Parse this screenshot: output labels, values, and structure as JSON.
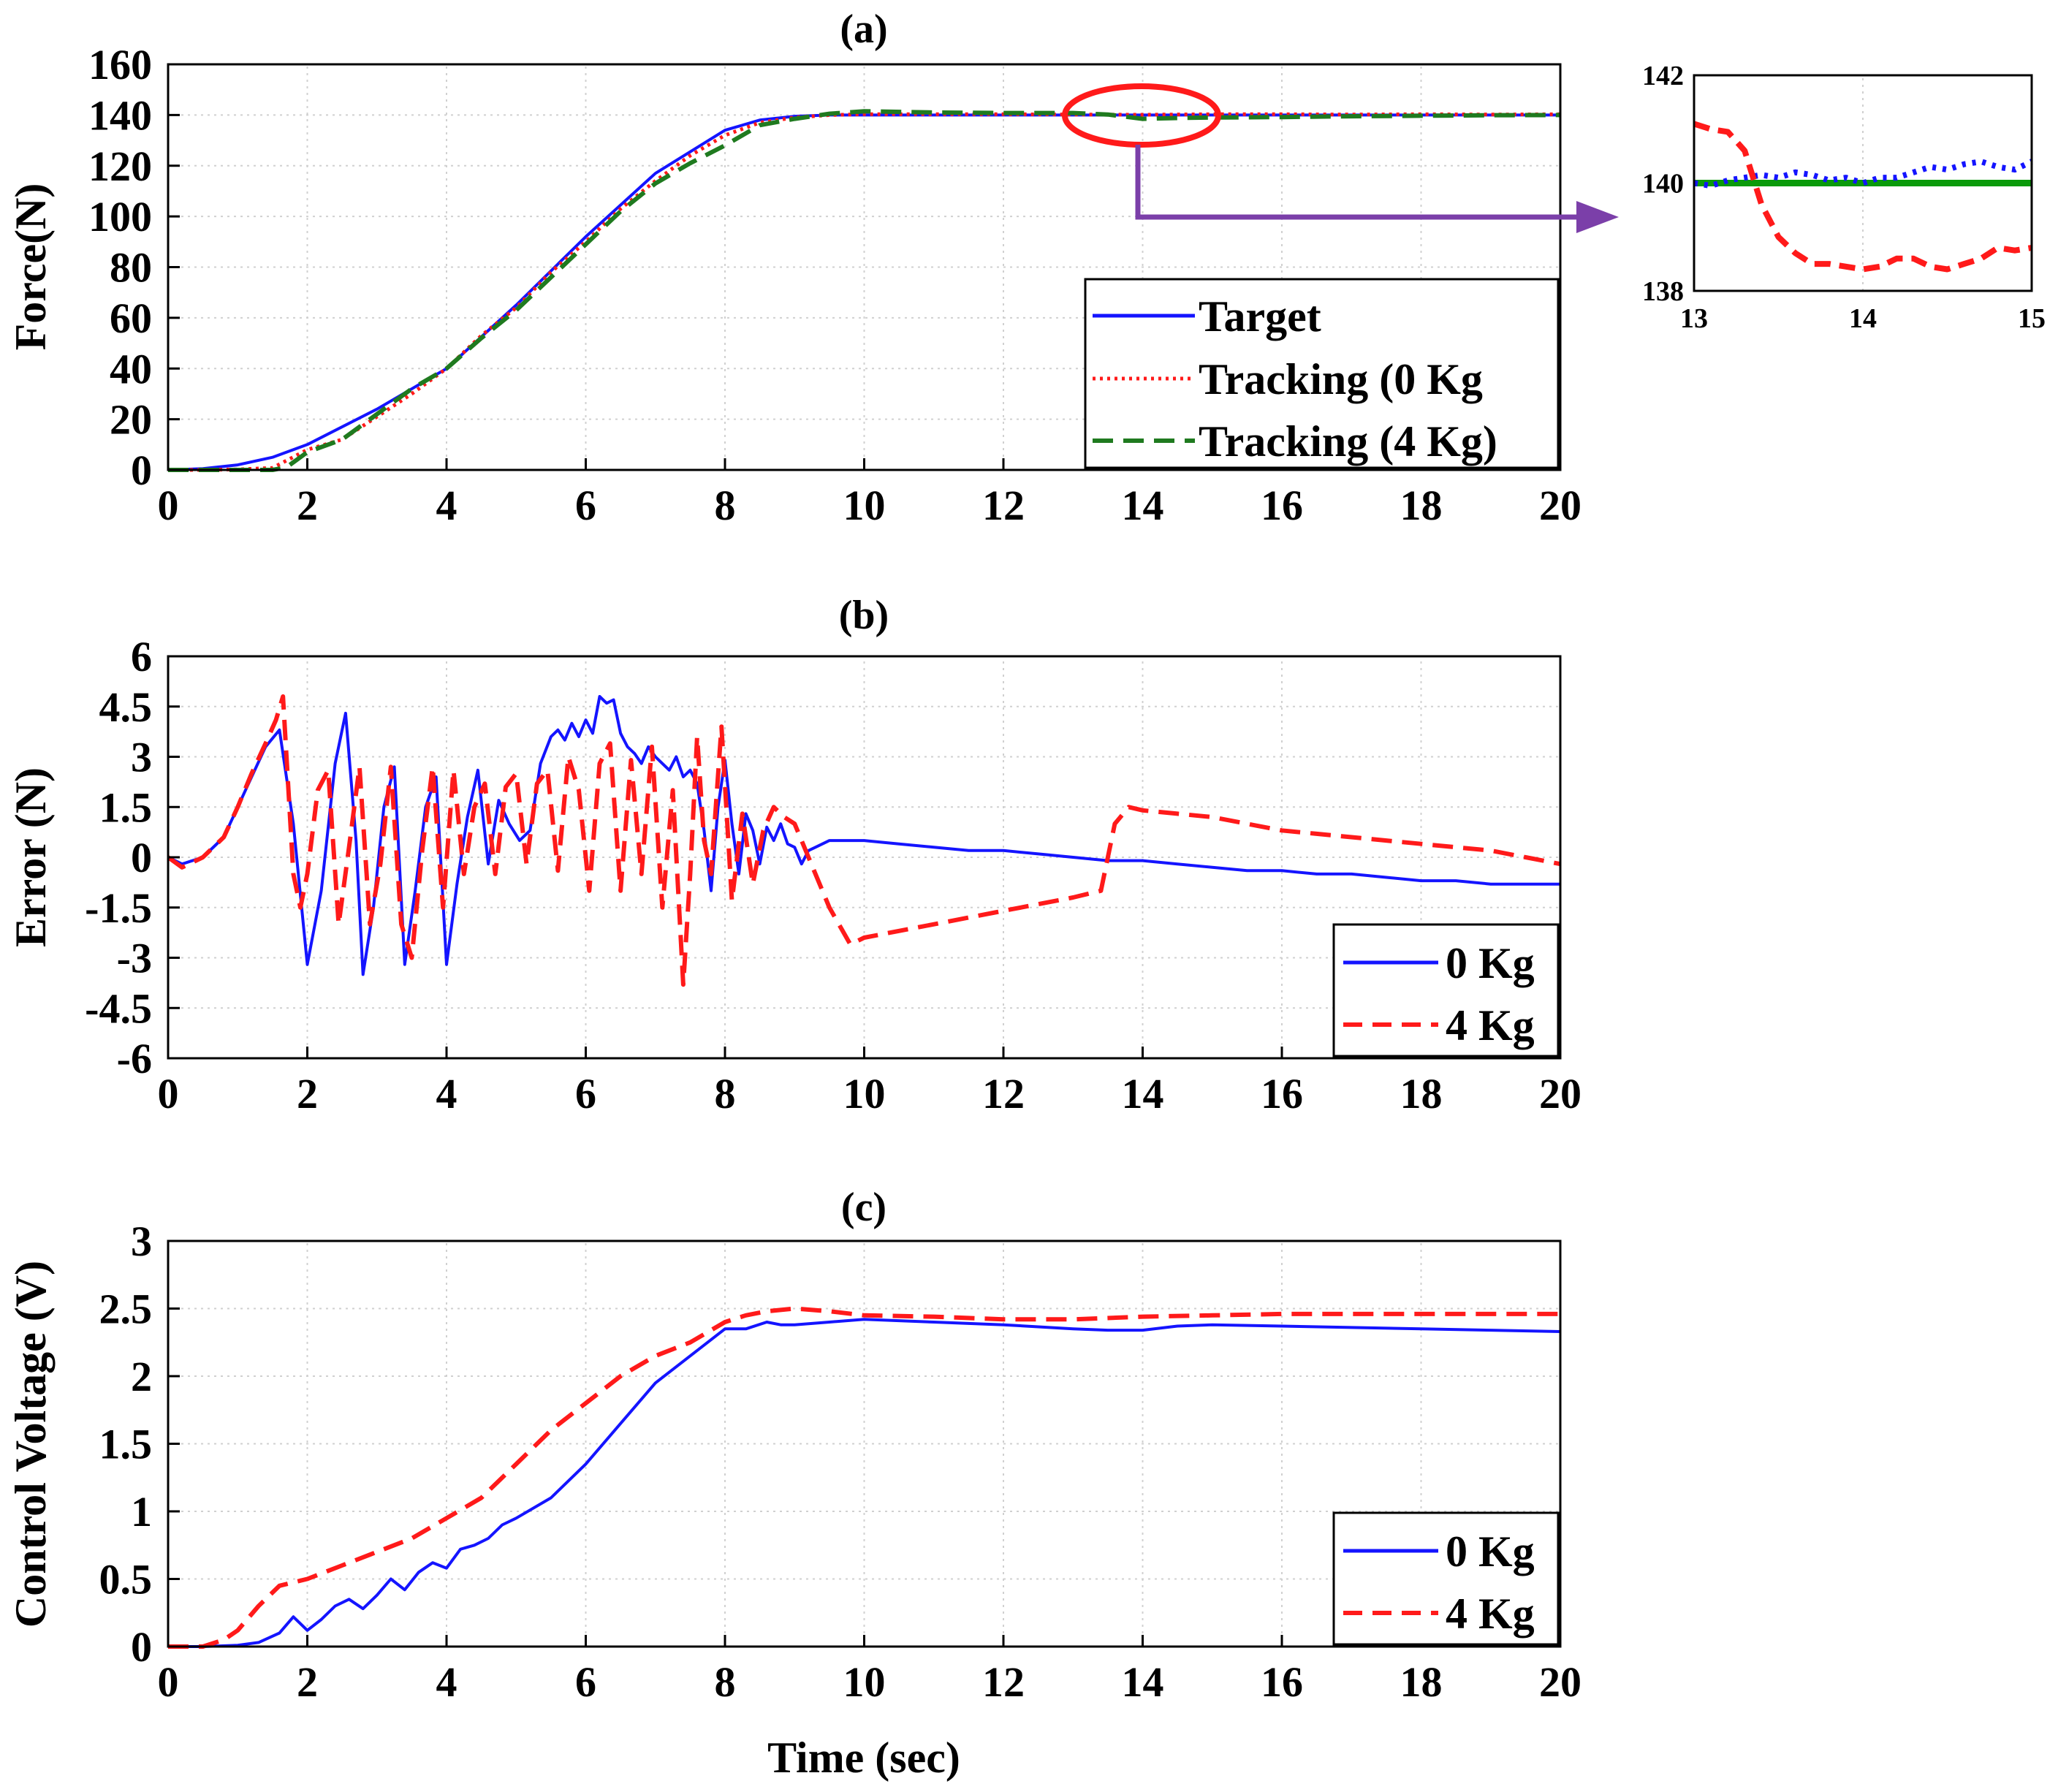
{
  "colors": {
    "target": "#1414ff",
    "track0": "#ff1a1a",
    "track4": "#1f7a1f",
    "kg0": "#1414ff",
    "kg4": "#ff1a1a",
    "inset_target": "#0a9a0a",
    "annot_circle": "#ff1a1a",
    "annot_arrow": "#7b3fa9"
  },
  "chart_data": [
    {
      "id": "a",
      "type": "line",
      "title": "(a)",
      "xlabel": "",
      "ylabel": "Force(N)",
      "xlim": [
        0,
        20
      ],
      "ylim": [
        0,
        160
      ],
      "xticks": [
        "0",
        "2",
        "4",
        "6",
        "8",
        "10",
        "12",
        "14",
        "16",
        "18",
        "20"
      ],
      "yticks": [
        "0",
        "20",
        "40",
        "60",
        "80",
        "100",
        "120",
        "140",
        "160"
      ],
      "grid": true,
      "legend_position": "bottom-right",
      "series": [
        {
          "name": "Target",
          "style": "solid",
          "color_key": "target",
          "x": [
            0,
            0.5,
            1,
            1.5,
            2,
            3,
            4,
            5,
            6,
            7,
            8,
            8.5,
            9,
            9.5,
            10,
            11,
            12,
            13,
            14,
            15,
            16,
            17,
            18,
            19,
            20
          ],
          "y": [
            0,
            0.5,
            2,
            5,
            10,
            24,
            40,
            65,
            92,
            117,
            134,
            138,
            139.5,
            140,
            140,
            140,
            140,
            140,
            140,
            140,
            140,
            140,
            140,
            140,
            140
          ]
        },
        {
          "name": "Tracking (0 Kg",
          "style": "dotted",
          "color_key": "track0",
          "x": [
            0,
            0.5,
            1,
            1.5,
            2,
            2.5,
            3,
            3.5,
            4,
            4.5,
            5,
            5.5,
            6,
            6.5,
            7,
            7.5,
            8,
            8.5,
            9,
            9.5,
            10,
            12,
            13,
            14,
            15,
            16,
            17,
            18,
            19,
            20
          ],
          "y": [
            0,
            0,
            0.2,
            0.8,
            8,
            12,
            21,
            30,
            40,
            53,
            64,
            78,
            90,
            103,
            114,
            124,
            132,
            137,
            139,
            140,
            140.3,
            140.3,
            140.2,
            140.1,
            140.3,
            140.3,
            140.2,
            140.3,
            140.2,
            140.3
          ]
        },
        {
          "name": "Tracking (4 Kg)",
          "style": "dashed",
          "color_key": "track4",
          "x": [
            0,
            0.5,
            1,
            1.5,
            1.7,
            2,
            2.5,
            3,
            3.5,
            4,
            4.5,
            5,
            5.5,
            6,
            6.5,
            7,
            7.5,
            8,
            8.5,
            9,
            9.5,
            10,
            11,
            12,
            13,
            13.5,
            14,
            14.5,
            15,
            16,
            17,
            18,
            19,
            20
          ],
          "y": [
            0,
            0,
            0,
            0,
            1,
            7,
            12,
            22,
            32,
            40,
            52,
            63,
            76,
            89,
            102,
            113,
            121,
            128,
            136,
            138.5,
            140.5,
            141.5,
            141,
            140.8,
            140.8,
            140.2,
            138.5,
            138.8,
            139,
            139.2,
            139.5,
            139.7,
            139.9,
            140
          ]
        }
      ],
      "inset": {
        "xlim": [
          13,
          15
        ],
        "ylim": [
          138,
          142
        ],
        "xticks": [
          "13",
          "14",
          "15"
        ],
        "yticks": [
          "138",
          "140",
          "142"
        ],
        "series": [
          {
            "color_key": "inset_target",
            "style": "solid",
            "x": [
              13,
              15
            ],
            "y": [
              140,
              140
            ]
          },
          {
            "color_key": "kg0",
            "style": "dotted",
            "x": [
              13,
              13.1,
              13.2,
              13.3,
              13.4,
              13.5,
              13.6,
              13.7,
              13.8,
              13.9,
              14,
              14.1,
              14.2,
              14.3,
              14.4,
              14.5,
              14.6,
              14.7,
              14.8,
              14.9,
              15
            ],
            "y": [
              140,
              139.95,
              140.05,
              140.1,
              140.15,
              140.1,
              140.2,
              140.15,
              140.05,
              140.1,
              140,
              140.1,
              140.1,
              140.2,
              140.3,
              140.25,
              140.35,
              140.4,
              140.3,
              140.25,
              140.4
            ]
          },
          {
            "color_key": "kg4",
            "style": "dashed",
            "x": [
              13,
              13.1,
              13.2,
              13.3,
              13.4,
              13.5,
              13.6,
              13.7,
              13.8,
              13.9,
              14,
              14.1,
              14.2,
              14.3,
              14.4,
              14.5,
              14.6,
              14.7,
              14.8,
              14.9,
              15
            ],
            "y": [
              141.1,
              141,
              140.95,
              140.6,
              139.6,
              139,
              138.7,
              138.5,
              138.5,
              138.45,
              138.4,
              138.45,
              138.6,
              138.6,
              138.45,
              138.4,
              138.5,
              138.6,
              138.8,
              138.75,
              138.8
            ]
          }
        ]
      }
    },
    {
      "id": "b",
      "type": "line",
      "title": "(b)",
      "xlabel": "",
      "ylabel": "Error (N)",
      "xlim": [
        0,
        20
      ],
      "ylim": [
        -6,
        6
      ],
      "xticks": [
        "0",
        "2",
        "4",
        "6",
        "8",
        "10",
        "12",
        "14",
        "16",
        "18",
        "20"
      ],
      "yticks": [
        "-6",
        "-4.5",
        "-3",
        "-1.5",
        "0",
        "1.5",
        "3",
        "4.5",
        "6"
      ],
      "grid": true,
      "legend_position": "bottom-right",
      "series": [
        {
          "name": "0 Kg",
          "style": "solid",
          "color_key": "kg0",
          "x": [
            0,
            0.2,
            0.5,
            0.8,
            1.0,
            1.2,
            1.4,
            1.6,
            1.8,
            2.0,
            2.2,
            2.4,
            2.55,
            2.7,
            2.8,
            2.95,
            3.1,
            3.25,
            3.4,
            3.55,
            3.7,
            3.85,
            4.0,
            4.15,
            4.3,
            4.45,
            4.6,
            4.75,
            4.9,
            5.05,
            5.2,
            5.35,
            5.5,
            5.6,
            5.7,
            5.8,
            5.9,
            6.0,
            6.1,
            6.2,
            6.3,
            6.4,
            6.5,
            6.6,
            6.7,
            6.8,
            6.9,
            7.0,
            7.1,
            7.2,
            7.3,
            7.4,
            7.5,
            7.6,
            7.7,
            7.8,
            7.9,
            8.0,
            8.1,
            8.2,
            8.3,
            8.4,
            8.5,
            8.6,
            8.7,
            8.8,
            8.9,
            9.0,
            9.1,
            9.2,
            9.3,
            9.5,
            10,
            10.5,
            11,
            11.5,
            12,
            12.5,
            13,
            13.5,
            14,
            14.5,
            15,
            15.5,
            16,
            16.5,
            17,
            17.5,
            18,
            18.5,
            19,
            19.5,
            20
          ],
          "y": [
            0,
            -0.2,
            0,
            0.6,
            1.5,
            2.4,
            3.3,
            3.8,
            1.0,
            -3.2,
            -1.0,
            2.8,
            4.3,
            0.5,
            -3.5,
            -1.5,
            1.5,
            2.7,
            -3.2,
            -1.0,
            1.5,
            2.4,
            -3.2,
            -0.8,
            1.2,
            2.6,
            -0.2,
            1.7,
            1.0,
            0.5,
            0.8,
            2.8,
            3.6,
            3.8,
            3.5,
            4.0,
            3.6,
            4.1,
            3.7,
            4.8,
            4.6,
            4.7,
            3.7,
            3.3,
            3.1,
            2.8,
            3.3,
            3.0,
            2.8,
            2.6,
            3.0,
            2.4,
            2.6,
            2.2,
            0.8,
            -1.0,
            1.5,
            2.9,
            1.0,
            -0.5,
            1.3,
            0.8,
            -0.2,
            0.9,
            0.5,
            1.0,
            0.4,
            0.3,
            -0.2,
            0.2,
            0.3,
            0.5,
            0.5,
            0.4,
            0.3,
            0.2,
            0.2,
            0.1,
            0,
            -0.1,
            -0.1,
            -0.2,
            -0.3,
            -0.4,
            -0.4,
            -0.5,
            -0.5,
            -0.6,
            -0.7,
            -0.7,
            -0.8,
            -0.8,
            -0.8
          ]
        },
        {
          "name": "4 Kg",
          "style": "dashed",
          "color_key": "kg4",
          "x": [
            0,
            0.2,
            0.5,
            0.8,
            1.0,
            1.2,
            1.4,
            1.55,
            1.65,
            1.8,
            1.9,
            2.0,
            2.15,
            2.3,
            2.45,
            2.6,
            2.75,
            2.9,
            3.05,
            3.2,
            3.35,
            3.5,
            3.65,
            3.8,
            3.95,
            4.1,
            4.25,
            4.4,
            4.55,
            4.7,
            4.85,
            5.0,
            5.15,
            5.3,
            5.45,
            5.6,
            5.75,
            5.9,
            6.05,
            6.2,
            6.35,
            6.5,
            6.65,
            6.8,
            6.95,
            7.1,
            7.25,
            7.4,
            7.5,
            7.6,
            7.7,
            7.8,
            7.95,
            8.1,
            8.25,
            8.4,
            8.55,
            8.7,
            8.85,
            9.0,
            9.2,
            9.5,
            9.8,
            10,
            10.5,
            11,
            11.5,
            12,
            12.5,
            13,
            13.4,
            13.6,
            13.8,
            14,
            14.5,
            15,
            15.5,
            16,
            16.5,
            17,
            17.5,
            18,
            18.5,
            19,
            19.5,
            20
          ],
          "y": [
            0,
            -0.3,
            0,
            0.6,
            1.5,
            2.5,
            3.4,
            4.1,
            4.8,
            -0.5,
            -1.5,
            -0.5,
            2.0,
            2.6,
            -2.0,
            0.3,
            2.7,
            -2.0,
            -0.2,
            2.7,
            -2.0,
            -3.0,
            0.2,
            2.7,
            -1.5,
            2.6,
            -0.5,
            1.5,
            2.2,
            -0.5,
            2.1,
            2.5,
            -0.2,
            2.2,
            2.6,
            -0.4,
            3.0,
            2.0,
            -1.0,
            2.8,
            3.4,
            -1.0,
            2.9,
            -0.5,
            3.3,
            -1.5,
            2.0,
            -3.8,
            -0.5,
            3.6,
            0.5,
            -0.5,
            3.9,
            -1.3,
            1.3,
            -0.8,
            0.8,
            1.5,
            1.2,
            1.0,
            0,
            -1.5,
            -2.6,
            -2.4,
            -2.2,
            -2.0,
            -1.8,
            -1.6,
            -1.4,
            -1.2,
            -1.0,
            1.0,
            1.5,
            1.4,
            1.3,
            1.2,
            1.0,
            0.8,
            0.7,
            0.6,
            0.5,
            0.4,
            0.3,
            0.2,
            0,
            -0.2
          ]
        }
      ]
    },
    {
      "id": "c",
      "type": "line",
      "title": "(c)",
      "xlabel": "Time (sec)",
      "ylabel": "Control Voltage (V)",
      "xlim": [
        0,
        20
      ],
      "ylim": [
        0,
        3
      ],
      "xticks": [
        "0",
        "2",
        "4",
        "6",
        "8",
        "10",
        "12",
        "14",
        "16",
        "18",
        "20"
      ],
      "yticks": [
        "0",
        "0.5",
        "1",
        "1.5",
        "2",
        "2.5",
        "3"
      ],
      "grid": true,
      "legend_position": "bottom-right",
      "series": [
        {
          "name": "0 Kg",
          "style": "solid",
          "color_key": "kg0",
          "x": [
            0,
            0.5,
            1,
            1.3,
            1.6,
            1.8,
            2.0,
            2.2,
            2.4,
            2.6,
            2.8,
            3.0,
            3.2,
            3.4,
            3.6,
            3.8,
            4.0,
            4.2,
            4.4,
            4.6,
            4.8,
            5,
            5.5,
            6,
            6.5,
            7,
            7.5,
            8,
            8.3,
            8.6,
            8.8,
            9,
            9.5,
            10,
            11,
            12,
            13,
            13.5,
            14,
            14.5,
            15,
            16,
            17,
            18,
            19,
            20
          ],
          "y": [
            0,
            0,
            0.01,
            0.03,
            0.1,
            0.22,
            0.12,
            0.2,
            0.3,
            0.35,
            0.28,
            0.38,
            0.5,
            0.42,
            0.55,
            0.62,
            0.58,
            0.72,
            0.75,
            0.8,
            0.9,
            0.95,
            1.1,
            1.35,
            1.65,
            1.95,
            2.15,
            2.35,
            2.35,
            2.4,
            2.38,
            2.38,
            2.4,
            2.42,
            2.4,
            2.38,
            2.35,
            2.34,
            2.34,
            2.37,
            2.38,
            2.37,
            2.36,
            2.35,
            2.34,
            2.33
          ]
        },
        {
          "name": "4 Kg",
          "style": "dashed",
          "color_key": "kg4",
          "x": [
            0,
            0.5,
            0.8,
            1.0,
            1.3,
            1.6,
            2.0,
            2.5,
            3,
            3.5,
            4,
            4.5,
            5,
            5.5,
            6,
            6.5,
            7,
            7.5,
            8,
            8.3,
            8.6,
            9,
            9.5,
            10,
            11,
            12,
            13,
            14,
            15,
            16,
            17,
            18,
            19,
            20
          ],
          "y": [
            0,
            0,
            0.05,
            0.12,
            0.3,
            0.45,
            0.5,
            0.6,
            0.7,
            0.8,
            0.95,
            1.1,
            1.35,
            1.6,
            1.8,
            2.0,
            2.15,
            2.25,
            2.4,
            2.45,
            2.48,
            2.5,
            2.48,
            2.45,
            2.44,
            2.42,
            2.42,
            2.44,
            2.45,
            2.46,
            2.46,
            2.46,
            2.46,
            2.46
          ]
        }
      ]
    }
  ]
}
